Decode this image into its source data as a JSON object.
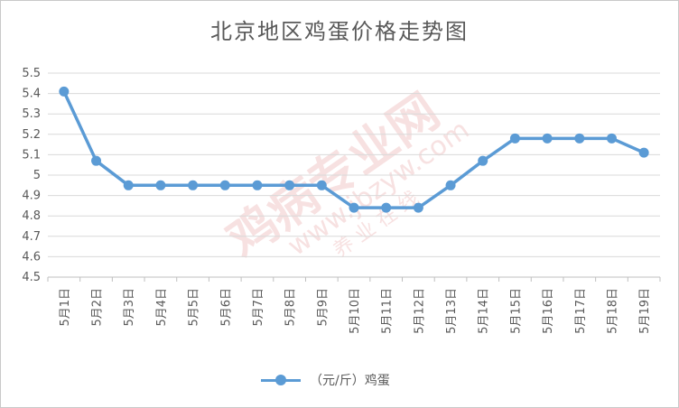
{
  "chart_data": {
    "type": "line",
    "title": "北京地区鸡蛋价格走势图",
    "categories": [
      "5月1日",
      "5月2日",
      "5月3日",
      "5月4日",
      "5月5日",
      "5月6日",
      "5月7日",
      "5月8日",
      "5月9日",
      "5月10日",
      "5月11日",
      "5月12日",
      "5月13日",
      "5月14日",
      "5月15日",
      "5月16日",
      "5月17日",
      "5月18日",
      "5月19日"
    ],
    "series": [
      {
        "name": "（元/斤）鸡蛋",
        "color": "#5b9bd5",
        "values": [
          5.41,
          5.07,
          4.95,
          4.95,
          4.95,
          4.95,
          4.95,
          4.95,
          4.95,
          4.84,
          4.84,
          4.84,
          4.95,
          5.07,
          5.18,
          5.18,
          5.18,
          5.18,
          5.11
        ]
      }
    ],
    "yticks": [
      "4.5",
      "4.6",
      "4.7",
      "4.8",
      "4.9",
      "5",
      "5.1",
      "5.2",
      "5.3",
      "5.4",
      "5.5"
    ],
    "ylim": [
      4.5,
      5.5
    ],
    "grid": true,
    "legend": "bottom"
  },
  "watermark": {
    "main": "鸡病专业网",
    "url": "www.jbzyw.com",
    "sub": "养 业 在 线",
    "color": "#e8b4b4"
  }
}
